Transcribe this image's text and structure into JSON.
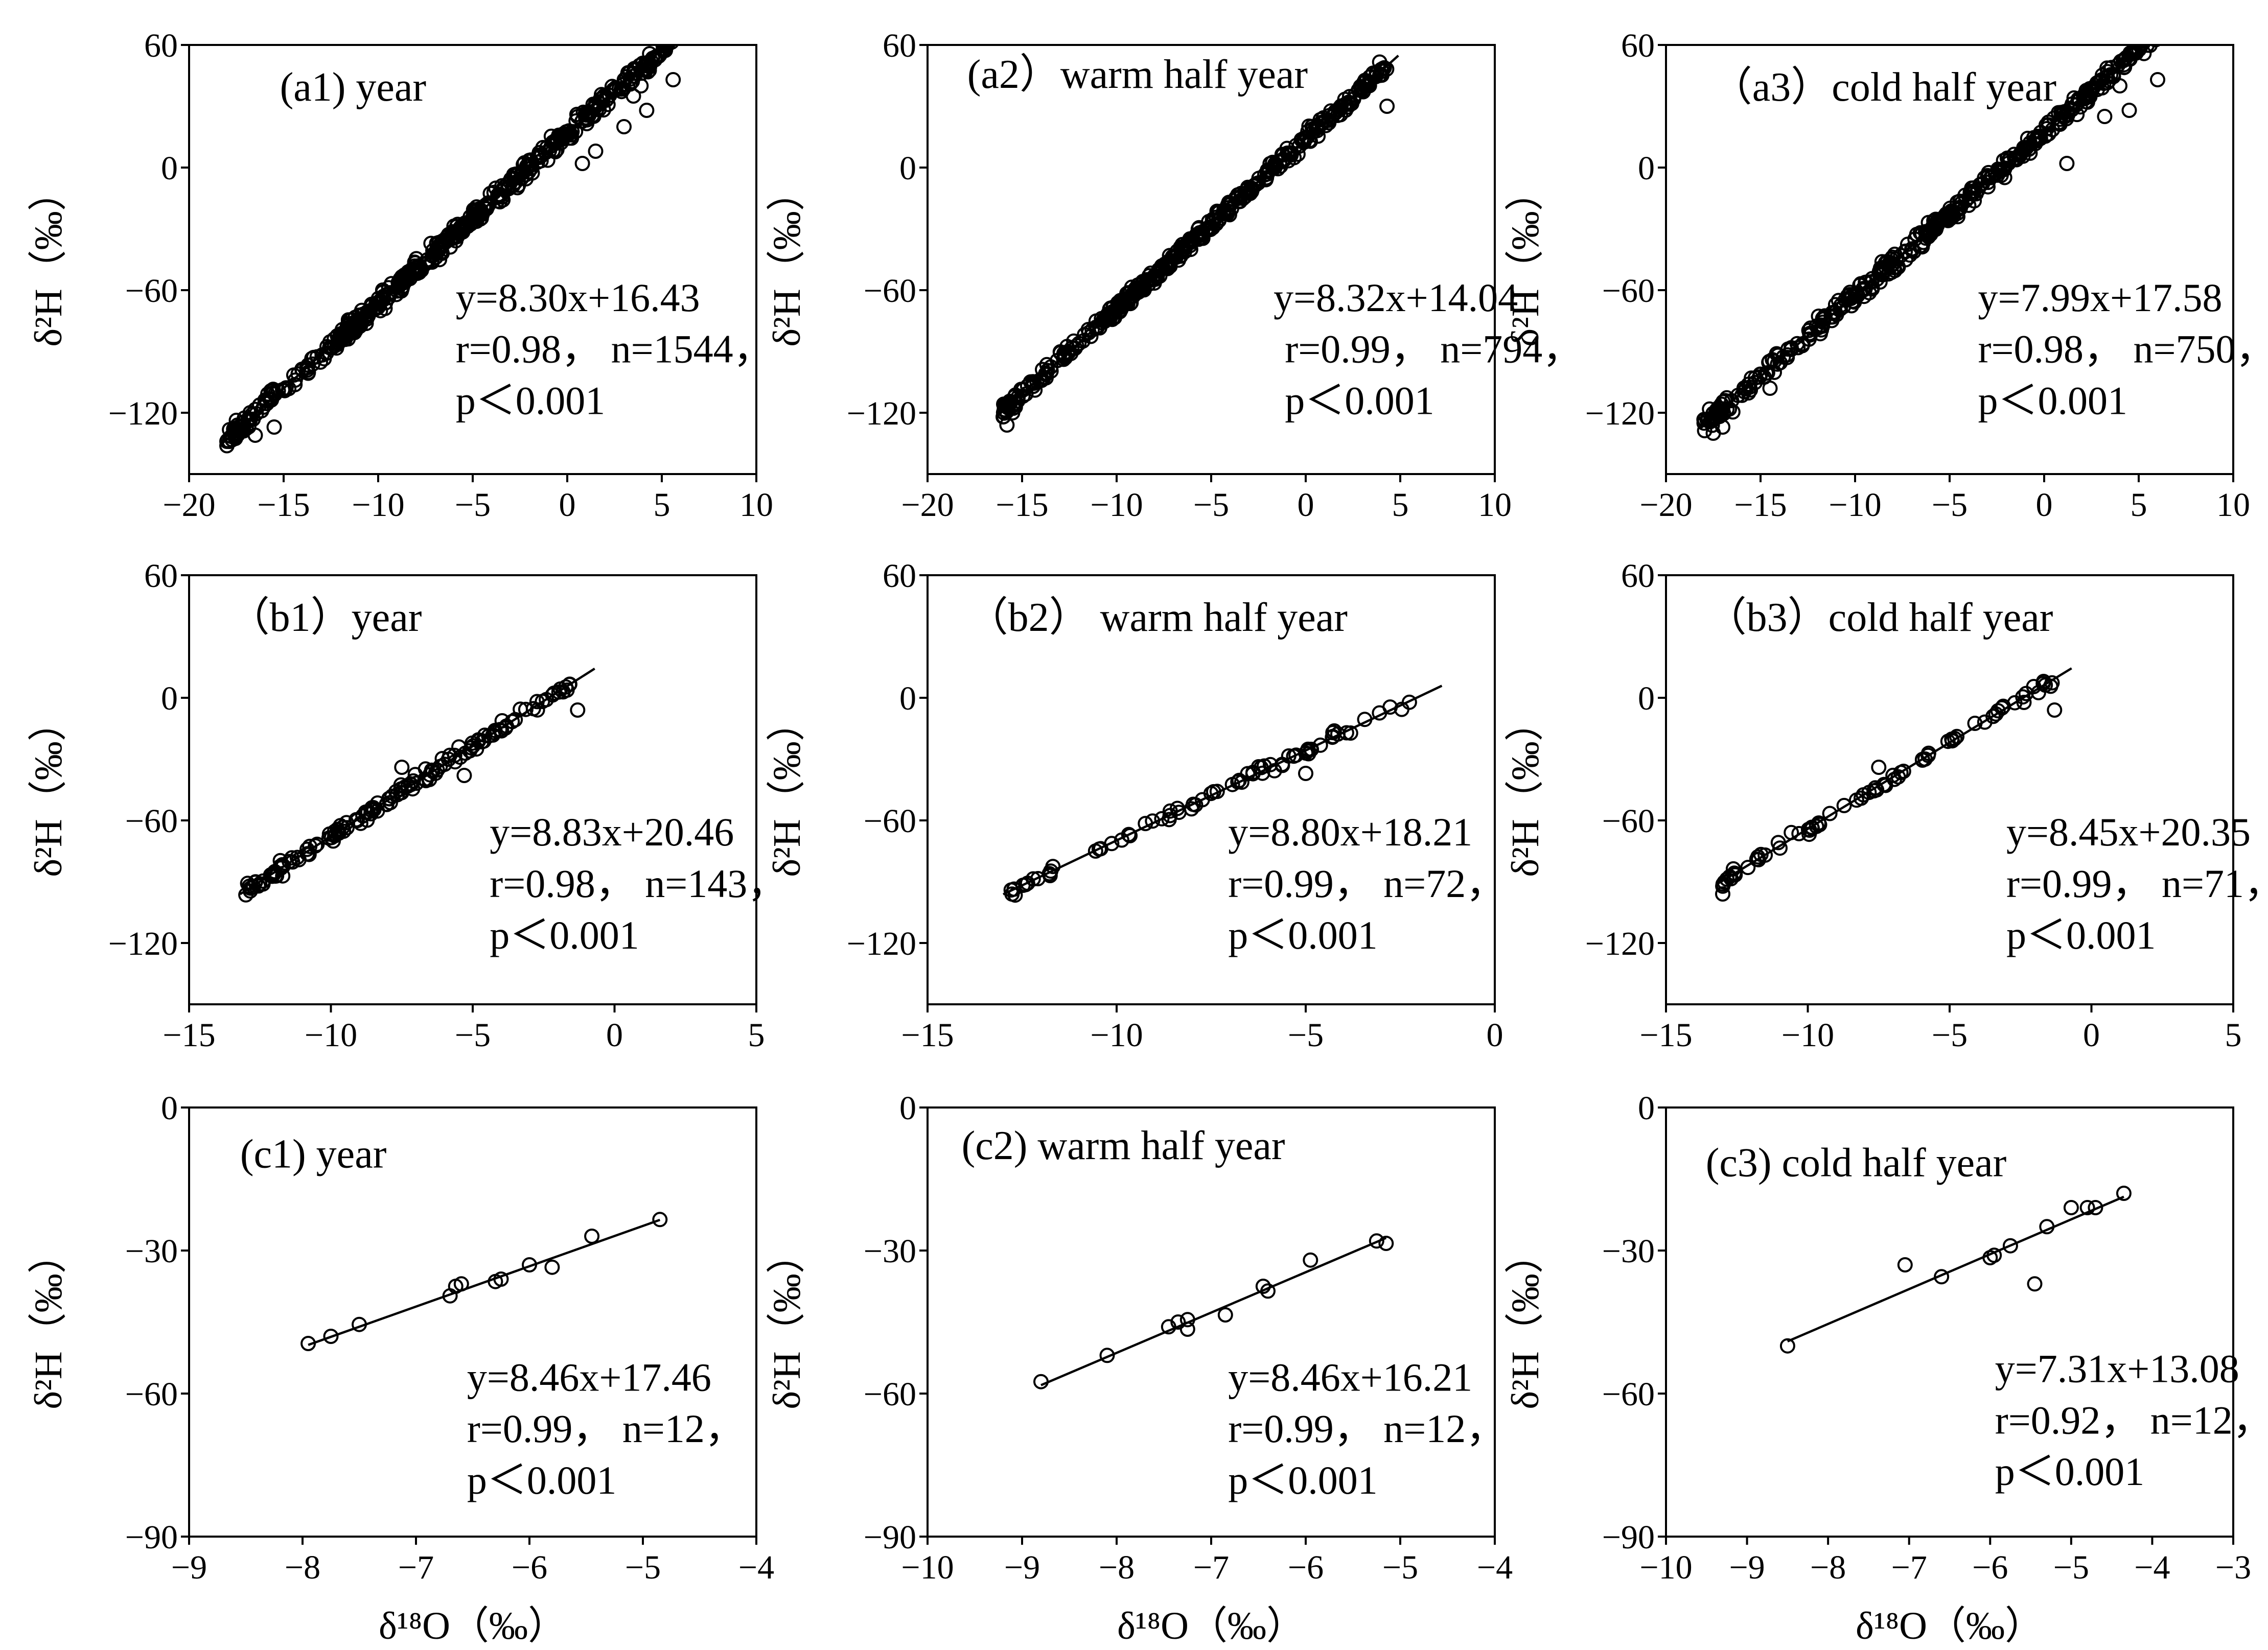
{
  "chart_data": [
    {
      "id": "a1",
      "type": "scatter",
      "title": "(a1)  year",
      "xlim": [
        -20,
        10
      ],
      "xticks": [
        -20,
        -15,
        -10,
        -5,
        0,
        5,
        10
      ],
      "ylim": [
        -150,
        60
      ],
      "yticks": [
        -120,
        -60,
        0,
        60
      ],
      "xlabel": "",
      "ylabel": "δ²H（‰）",
      "fit": {
        "slope": 8.3,
        "intercept": 16.43
      },
      "equation": "y=8.30x+16.43",
      "stats": "r=0.98，  n=1544，",
      "p": "p＜0.001",
      "n": 1544,
      "x_range": [
        -18,
        5.8
      ],
      "spread": 0.5,
      "scatter_n": 520,
      "outliers": [
        {
          "x": 3.5,
          "y": 35
        },
        {
          "x": 4.2,
          "y": 28
        },
        {
          "x": 5.6,
          "y": 43
        },
        {
          "x": 3.9,
          "y": 40
        },
        {
          "x": 0.8,
          "y": 2
        },
        {
          "x": 1.5,
          "y": 8
        },
        {
          "x": 3.0,
          "y": 20
        },
        {
          "x": -15.5,
          "y": -127
        },
        {
          "x": -16.5,
          "y": -131
        },
        {
          "x": -18,
          "y": -134
        }
      ]
    },
    {
      "id": "a2",
      "type": "scatter",
      "title": "(a2）warm half year",
      "xlim": [
        -20,
        10
      ],
      "xticks": [
        -20,
        -15,
        -10,
        -5,
        0,
        5,
        10
      ],
      "ylim": [
        -150,
        60
      ],
      "yticks": [
        -120,
        -60,
        0,
        60
      ],
      "xlabel": "",
      "ylabel": "δ²H（‰）",
      "fit": {
        "slope": 8.32,
        "intercept": 14.04
      },
      "equation": "y=8.32x+14.04",
      "stats": "r=0.99，  n=794，",
      "p": "p＜0.001",
      "n": 794,
      "x_range": [
        -16,
        4.3
      ],
      "spread": 0.4,
      "scatter_n": 420,
      "outliers": [
        {
          "x": 4.3,
          "y": 30
        },
        {
          "x": -15.8,
          "y": -126
        },
        {
          "x": -15.5,
          "y": -120
        },
        {
          "x": -16,
          "y": -122
        }
      ]
    },
    {
      "id": "a3",
      "type": "scatter",
      "title": "（a3）cold half year",
      "xlim": [
        -20,
        10
      ],
      "xticks": [
        -20,
        -15,
        -10,
        -5,
        0,
        5,
        10
      ],
      "ylim": [
        -150,
        60
      ],
      "yticks": [
        -120,
        -60,
        0,
        60
      ],
      "xlabel": "",
      "ylabel": "δ²H（‰）",
      "fit": {
        "slope": 7.99,
        "intercept": 17.58
      },
      "equation": "y=7.99x+17.58",
      "stats": "r=0.98，  n=750，",
      "p": "p＜0.001",
      "n": 750,
      "x_range": [
        -18,
        6
      ],
      "spread": 0.55,
      "scatter_n": 400,
      "outliers": [
        {
          "x": 4.0,
          "y": 40
        },
        {
          "x": 4.5,
          "y": 28
        },
        {
          "x": 6.0,
          "y": 43
        },
        {
          "x": 3.2,
          "y": 25
        },
        {
          "x": 1.2,
          "y": 2
        },
        {
          "x": -17.5,
          "y": -130
        },
        {
          "x": -17.0,
          "y": -127
        },
        {
          "x": -14.5,
          "y": -108
        }
      ]
    },
    {
      "id": "b1",
      "type": "scatter",
      "title": "（b1）year",
      "xlim": [
        -15,
        5
      ],
      "xticks": [
        -15,
        -10,
        -5,
        0,
        5
      ],
      "ylim": [
        -150,
        60
      ],
      "yticks": [
        -120,
        -60,
        0,
        60
      ],
      "xlabel": "",
      "ylabel": "δ²H（‰）",
      "fit": {
        "slope": 8.83,
        "intercept": 20.46
      },
      "equation": "y=8.83x+20.46",
      "stats": "r=0.98，  n=143，",
      "p": "p＜0.001",
      "n": 143,
      "x_range": [
        -13,
        -1.3
      ],
      "spread": 0.35,
      "scatter_n": 143,
      "outliers": [
        {
          "x": -1.3,
          "y": -6
        },
        {
          "x": -7.5,
          "y": -34
        },
        {
          "x": -5.3,
          "y": -38
        }
      ]
    },
    {
      "id": "b2",
      "type": "scatter",
      "title": "（b2） warm half year",
      "xlim": [
        -15,
        0
      ],
      "xticks": [
        -15,
        -10,
        -5,
        0
      ],
      "ylim": [
        -150,
        60
      ],
      "yticks": [
        -120,
        -60,
        0,
        60
      ],
      "xlabel": "",
      "ylabel": "δ²H（‰）",
      "fit": {
        "slope": 8.8,
        "intercept": 18.21
      },
      "equation": "y=8.80x+18.21",
      "stats": "r=0.99，  n=72，",
      "p": "p＜0.001",
      "n": 72,
      "x_range": [
        -12.8,
        -2.0
      ],
      "spread": 0.3,
      "scatter_n": 72,
      "outliers": [
        {
          "x": -5.0,
          "y": -37
        }
      ]
    },
    {
      "id": "b3",
      "type": "scatter",
      "title": "（b3）cold half year",
      "xlim": [
        -15,
        5
      ],
      "xticks": [
        -15,
        -10,
        -5,
        0,
        5
      ],
      "ylim": [
        -150,
        60
      ],
      "yticks": [
        -120,
        -60,
        0,
        60
      ],
      "xlabel": "",
      "ylabel": "δ²H（‰）",
      "fit": {
        "slope": 8.45,
        "intercept": 20.35
      },
      "equation": "y=8.45x+20.35",
      "stats": "r=0.99，  n=71，",
      "p": "p＜0.001",
      "n": 71,
      "x_range": [
        -13,
        -1.3
      ],
      "spread": 0.3,
      "scatter_n": 71,
      "outliers": [
        {
          "x": -1.3,
          "y": -6
        },
        {
          "x": -7.5,
          "y": -34
        },
        {
          "x": -13,
          "y": -96
        }
      ]
    },
    {
      "id": "c1",
      "type": "scatter",
      "title": "(c1)  year",
      "xlim": [
        -9,
        -4
      ],
      "xticks": [
        -9,
        -8,
        -7,
        -6,
        -5,
        -4
      ],
      "ylim": [
        -90,
        0
      ],
      "yticks": [
        -90,
        -60,
        -30,
        0
      ],
      "xlabel": "δ¹⁸O（‰）",
      "ylabel": "δ²H（‰）",
      "fit": {
        "slope": 8.46,
        "intercept": 17.46
      },
      "equation": "y=8.46x+17.46",
      "stats": "r=0.99，  n=12，",
      "p": "p＜0.001",
      "n": 12,
      "x_range": [
        -7.95,
        -4.85
      ],
      "points": [
        {
          "x": -7.95,
          "y": -49.5
        },
        {
          "x": -7.75,
          "y": -48
        },
        {
          "x": -7.5,
          "y": -45.5
        },
        {
          "x": -6.7,
          "y": -39.5
        },
        {
          "x": -6.65,
          "y": -37.5
        },
        {
          "x": -6.6,
          "y": -37
        },
        {
          "x": -6.3,
          "y": -36.5
        },
        {
          "x": -6.25,
          "y": -36
        },
        {
          "x": -6.0,
          "y": -33
        },
        {
          "x": -5.8,
          "y": -33.5
        },
        {
          "x": -5.45,
          "y": -27
        },
        {
          "x": -4.85,
          "y": -23.5
        }
      ]
    },
    {
      "id": "c2",
      "type": "scatter",
      "title": "(c2)  warm half year",
      "xlim": [
        -10,
        -4
      ],
      "xticks": [
        -10,
        -9,
        -8,
        -7,
        -6,
        -5,
        -4
      ],
      "ylim": [
        -90,
        0
      ],
      "yticks": [
        -90,
        -60,
        -30,
        0
      ],
      "xlabel": "δ¹⁸O（‰）",
      "ylabel": "δ²H（‰）",
      "fit": {
        "slope": 8.46,
        "intercept": 16.21
      },
      "equation": "y=8.46x+16.21",
      "stats": "r=0.99，  n=12，",
      "p": "p＜0.001",
      "n": 12,
      "x_range": [
        -8.8,
        -5.15
      ],
      "points": [
        {
          "x": -8.8,
          "y": -57.5
        },
        {
          "x": -8.1,
          "y": -52
        },
        {
          "x": -7.45,
          "y": -46
        },
        {
          "x": -7.35,
          "y": -45
        },
        {
          "x": -7.25,
          "y": -46.5
        },
        {
          "x": -7.25,
          "y": -44.5
        },
        {
          "x": -6.85,
          "y": -43.5
        },
        {
          "x": -6.45,
          "y": -37.5
        },
        {
          "x": -6.4,
          "y": -38.5
        },
        {
          "x": -5.95,
          "y": -32
        },
        {
          "x": -5.25,
          "y": -28
        },
        {
          "x": -5.15,
          "y": -28.5
        }
      ]
    },
    {
      "id": "c3",
      "type": "scatter",
      "title": "(c3)  cold half year",
      "xlim": [
        -10,
        -3
      ],
      "xticks": [
        -10,
        -9,
        -8,
        -7,
        -6,
        -5,
        -4,
        -3
      ],
      "ylim": [
        -90,
        0
      ],
      "yticks": [
        -90,
        -60,
        -30,
        0
      ],
      "xlabel": "δ¹⁸O（‰）",
      "ylabel": "δ²H（‰）",
      "fit": {
        "slope": 7.31,
        "intercept": 13.08
      },
      "equation": "y=7.31x+13.08",
      "stats": "r=0.92，  n=12，",
      "p": "p＜0.001",
      "n": 12,
      "x_range": [
        -8.5,
        -4.35
      ],
      "points": [
        {
          "x": -8.5,
          "y": -50
        },
        {
          "x": -7.05,
          "y": -33
        },
        {
          "x": -6.6,
          "y": -35.5
        },
        {
          "x": -6.0,
          "y": -31.5
        },
        {
          "x": -5.95,
          "y": -31
        },
        {
          "x": -5.75,
          "y": -29
        },
        {
          "x": -5.45,
          "y": -37
        },
        {
          "x": -5.3,
          "y": -25
        },
        {
          "x": -5.0,
          "y": -21
        },
        {
          "x": -4.8,
          "y": -21
        },
        {
          "x": -4.7,
          "y": -21
        },
        {
          "x": -4.35,
          "y": -18
        }
      ]
    }
  ]
}
